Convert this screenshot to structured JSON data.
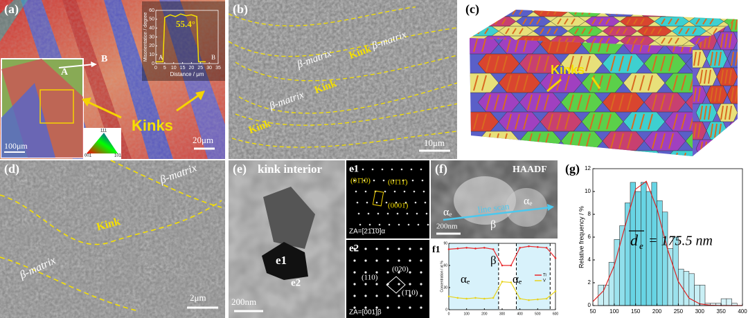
{
  "panels": {
    "a": {
      "label": "(a)",
      "point_a": "A",
      "point_b": "B",
      "kinks": "Kinks",
      "scale_left": "100μm",
      "scale_right": "20μm",
      "ipf": [
        "001",
        "101",
        "111"
      ],
      "inset": {
        "ylabel": "Misorientation / degree",
        "xlabel": "Distance / μm",
        "angle": "55.4°",
        "start": "A",
        "end": "B",
        "xlim": [
          0,
          35
        ],
        "ylim": [
          0,
          60
        ],
        "xticks": [
          0,
          5,
          10,
          15,
          20,
          25,
          30,
          35
        ],
        "yticks": [
          0,
          10,
          20,
          30,
          40,
          50,
          60
        ],
        "x": [
          0,
          4,
          5,
          8,
          11,
          14,
          17,
          20,
          23,
          24,
          28
        ],
        "y": [
          2,
          2,
          52,
          55,
          53,
          56,
          54,
          55,
          53,
          2,
          2
        ]
      }
    },
    "b": {
      "label": "(b)",
      "regions": [
        "β-matrix",
        "Kink",
        "β-matrix",
        "Kink",
        "β-matrix",
        "Kink"
      ],
      "scale_bar": "10μm"
    },
    "c": {
      "label": "(c)",
      "kinks": "Kinks"
    },
    "d": {
      "label": "(d)",
      "regions": [
        "β-matrix",
        "Kink",
        "β-matrix"
      ],
      "scale_bar": "2μm"
    },
    "e": {
      "label": "(e)",
      "title": "kink interior",
      "grains": [
        "e1",
        "e2"
      ],
      "scale_bar": "200nm",
      "e1": {
        "label": "e1",
        "spots": [
          "(01̄10)",
          "(01̄11̄)",
          "(0001̄)"
        ],
        "zone_axis": "ZA=[21̄1̄0]α"
      },
      "e2": {
        "label": "e2",
        "spots": [
          "(110)",
          "(020)",
          "(1̄10)"
        ],
        "zone_axis": "ZA=[001]β"
      }
    },
    "f": {
      "label": "(f)",
      "mode": "HAADF",
      "phases": [
        "αₑ",
        "αₑ",
        "β"
      ],
      "line_scan": "line scan",
      "scale_bar": "200nm",
      "f1": {
        "label": "f1",
        "ylabel": "Concentration / at %",
        "phases": [
          "αₑ",
          "β",
          "αₑ"
        ],
        "xlim": [
          0,
          600
        ],
        "ylim": [
          0,
          90
        ],
        "xticks": [
          0,
          100,
          200,
          300,
          400,
          500,
          600
        ],
        "yticks": [
          0,
          30,
          60,
          90
        ],
        "x": [
          0,
          50,
          100,
          150,
          200,
          250,
          300,
          350,
          400,
          450,
          500,
          550,
          600
        ],
        "series": [
          {
            "name": "Ti",
            "color": "#e8262a",
            "values": [
              82,
              83,
              84,
              83,
              84,
              82,
              60,
              60,
              84,
              86,
              85,
              84,
              70
            ]
          },
          {
            "name": "V",
            "color": "#e8d31a",
            "values": [
              18,
              16,
              15,
              16,
              15,
              16,
              38,
              37,
              15,
              13,
              14,
              15,
              25
            ]
          }
        ]
      }
    },
    "g": {
      "label": "(g)",
      "ylabel": "Relative frequency / %",
      "annotation_symbol": "d",
      "annotation_subscript": "e",
      "annotation_text": "= 175.5 nm",
      "bins": [
        62.5,
        75,
        87.5,
        100,
        112.5,
        125,
        137.5,
        150,
        162.5,
        175,
        187.5,
        200,
        212.5,
        225,
        237.5,
        250,
        262.5,
        275,
        287.5,
        300,
        312.5,
        325,
        337.5,
        350,
        362.5,
        375,
        387.5
      ],
      "counts": [
        1.8,
        1.8,
        3.8,
        5.8,
        7.0,
        9.0,
        10.8,
        10.0,
        10.8,
        10.0,
        10.8,
        9.2,
        8.2,
        5.0,
        6.0,
        3.2,
        3.0,
        2.8,
        1.8,
        1.8,
        0.2,
        0.2,
        0.2,
        0.6,
        0.6,
        0.2
      ],
      "color": "#5fd0e0",
      "xlim": [
        50,
        400
      ],
      "ylim": [
        0,
        12
      ],
      "xticks": [
        50,
        100,
        150,
        200,
        250,
        300,
        350,
        400
      ],
      "yticks": [
        0,
        2,
        4,
        6,
        8,
        10,
        12
      ],
      "fit": {
        "color": "#e02020",
        "x": [
          50,
          75,
          100,
          125,
          150,
          175,
          200,
          225,
          250,
          275,
          300,
          325,
          350,
          375,
          400
        ],
        "y": [
          0.35,
          1.3,
          3.5,
          6.9,
          10.2,
          10.9,
          8.5,
          4.9,
          2.1,
          0.65,
          0.15,
          0.03,
          0,
          0,
          0
        ]
      }
    }
  }
}
